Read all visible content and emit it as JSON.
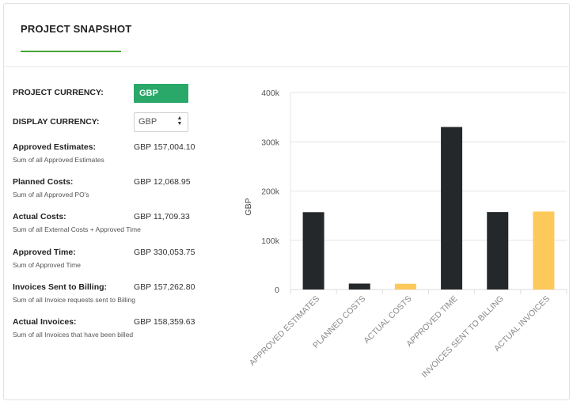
{
  "header": {
    "title": "PROJECT SNAPSHOT"
  },
  "currency": {
    "project_label": "PROJECT CURRENCY:",
    "project_value": "GBP",
    "display_label": "DISPLAY CURRENCY:",
    "display_value": "GBP",
    "accent_color": "#2aa86a"
  },
  "metrics": [
    {
      "label": "Approved Estimates:",
      "value": "GBP 157,004.10",
      "desc": "Sum of all Approved Estimates"
    },
    {
      "label": "Planned Costs:",
      "value": "GBP 12,068.95",
      "desc": "Sum of all Approved PO's"
    },
    {
      "label": "Actual Costs:",
      "value": "GBP 11,709.33",
      "desc": "Sum of all External Costs + Approved Time"
    },
    {
      "label": "Approved Time:",
      "value": "GBP 330,053.75",
      "desc": "Sum of Approved Time"
    },
    {
      "label": "Invoices Sent to Billing:",
      "value": "GBP 157,262.80",
      "desc": "Sum of all Invoice requests sent to Billing"
    },
    {
      "label": "Actual Invoices:",
      "value": "GBP 158,359.63",
      "desc": "Sum of all Invoices that have been billed"
    }
  ],
  "chart_data": {
    "type": "bar",
    "categories": [
      "APPROVED ESTIMATES",
      "PLANNED COSTS",
      "ACTUAL COSTS",
      "APPROVED TIME",
      "INVOICES SENT TO BILLING",
      "ACTUAL INVOICES"
    ],
    "values": [
      157004.1,
      12068.95,
      11709.33,
      330053.75,
      157262.8,
      158359.63
    ],
    "bar_colors": [
      "#24282b",
      "#24282b",
      "#fdc95a",
      "#24282b",
      "#24282b",
      "#fdc95a"
    ],
    "ylabel": "GBP",
    "xlabel": "",
    "ylim": [
      0,
      400000
    ],
    "yticks": [
      0,
      100000,
      200000,
      300000,
      400000
    ],
    "ytick_labels": [
      "0",
      "100k",
      "200k",
      "300k",
      "400k"
    ],
    "grid": true
  }
}
